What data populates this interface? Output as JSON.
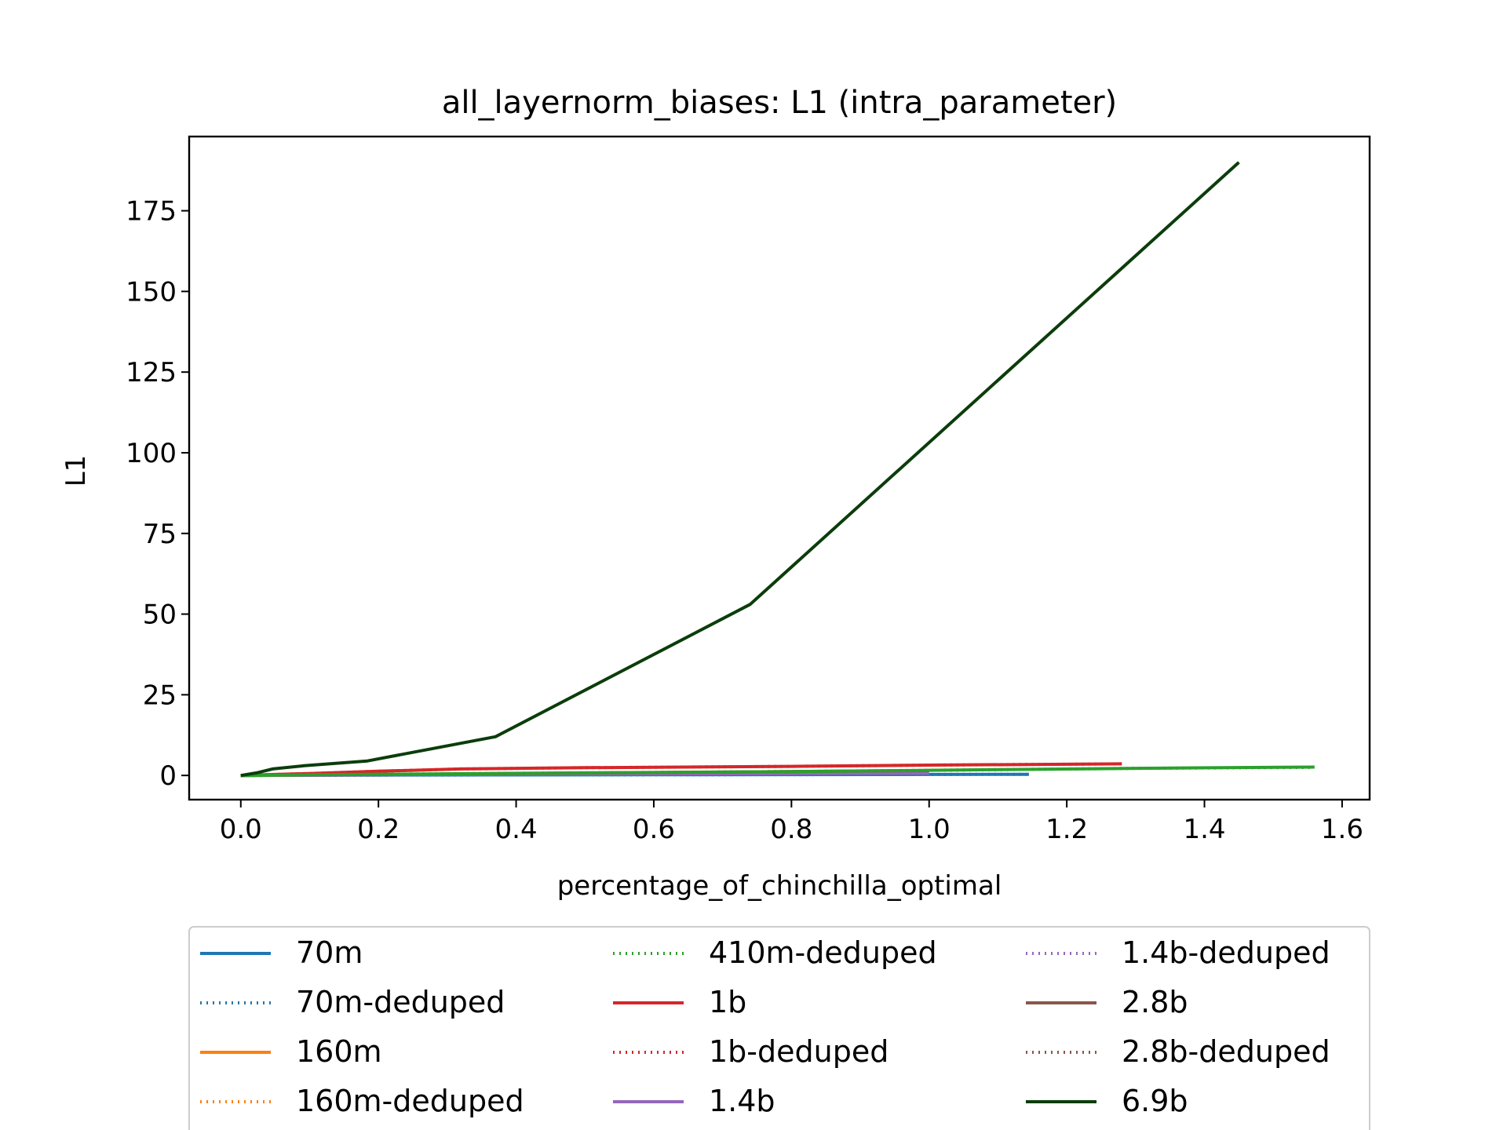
{
  "chart_data": {
    "type": "line",
    "title": "all_layernorm_biases: L1 (intra_parameter)",
    "xlabel": "percentage_of_chinchilla_optimal",
    "ylabel": "L1",
    "xlim": [
      -0.075,
      1.64
    ],
    "ylim": [
      -7.5,
      198
    ],
    "xticks": [
      0.0,
      0.2,
      0.4,
      0.6,
      0.8,
      1.0,
      1.2,
      1.4,
      1.6
    ],
    "xtick_labels": [
      "0.0",
      "0.2",
      "0.4",
      "0.6",
      "0.8",
      "1.0",
      "1.2",
      "1.4",
      "1.6"
    ],
    "yticks": [
      0,
      25,
      50,
      75,
      100,
      125,
      150,
      175
    ],
    "ytick_labels": [
      "0",
      "25",
      "50",
      "75",
      "100",
      "125",
      "150",
      "175"
    ],
    "grid": false,
    "legend_placement": "below plot, 3 columns",
    "series": [
      {
        "name": "70m",
        "color": "#1f77b4",
        "style": "solid",
        "x": [
          0.0,
          0.05,
          0.2,
          0.4,
          0.6,
          0.8,
          1.0,
          1.145
        ],
        "y": [
          0.0,
          0.05,
          0.1,
          0.15,
          0.2,
          0.25,
          0.3,
          0.35
        ]
      },
      {
        "name": "70m-deduped",
        "color": "#1f77b4",
        "style": "dotted",
        "x": [
          0.0,
          0.05,
          0.2,
          0.4,
          0.6,
          0.8,
          1.0,
          1.145
        ],
        "y": [
          0.0,
          0.05,
          0.1,
          0.15,
          0.2,
          0.25,
          0.3,
          0.35
        ]
      },
      {
        "name": "160m",
        "color": "#ff7f0e",
        "style": "solid",
        "x": [
          0.0,
          0.05,
          0.2,
          0.4,
          0.6,
          0.8,
          1.0
        ],
        "y": [
          0.0,
          0.1,
          0.3,
          0.5,
          0.8,
          1.0,
          1.3
        ]
      },
      {
        "name": "160m-deduped",
        "color": "#ff7f0e",
        "style": "dotted",
        "x": [
          0.0,
          0.05,
          0.2,
          0.4,
          0.6,
          0.8,
          1.0
        ],
        "y": [
          0.0,
          0.1,
          0.3,
          0.5,
          0.8,
          1.0,
          1.3
        ]
      },
      {
        "name": "410m-deduped",
        "color": "#2ca02c",
        "style": "dotted",
        "x": [
          0.0,
          0.1,
          0.3,
          0.5,
          0.8,
          1.1,
          1.3,
          1.56
        ],
        "y": [
          0.0,
          0.2,
          0.5,
          0.8,
          1.2,
          1.8,
          2.2,
          2.5
        ]
      },
      {
        "name": "1b",
        "color": "#d62728",
        "style": "solid",
        "x": [
          0.0,
          0.05,
          0.1,
          0.2,
          0.32,
          0.5,
          0.8,
          1.0,
          1.28
        ],
        "y": [
          0.0,
          0.3,
          0.6,
          1.3,
          2.0,
          2.4,
          2.8,
          3.2,
          3.6
        ]
      },
      {
        "name": "1b-deduped",
        "color": "#d62728",
        "style": "dotted",
        "x": [
          0.0,
          0.05,
          0.1,
          0.2,
          0.32,
          0.5,
          0.8,
          1.0,
          1.28
        ],
        "y": [
          0.0,
          0.3,
          0.6,
          1.3,
          2.0,
          2.4,
          2.8,
          3.2,
          3.6
        ]
      },
      {
        "name": "1.4b",
        "color": "#9467bd",
        "style": "solid",
        "x": [
          0.0,
          0.2,
          0.4,
          0.6,
          0.8,
          1.0
        ],
        "y": [
          0.0,
          0.2,
          0.4,
          0.5,
          0.6,
          0.7
        ]
      },
      {
        "name": "1.4b-deduped",
        "color": "#9467bd",
        "style": "dotted",
        "x": [
          0.0,
          0.2,
          0.4,
          0.6,
          0.8,
          1.0
        ],
        "y": [
          0.0,
          0.2,
          0.4,
          0.5,
          0.6,
          0.7
        ]
      },
      {
        "name": "2.8b",
        "color": "#8c564b",
        "style": "solid",
        "x": [
          0.0,
          0.2,
          0.4,
          0.6,
          0.8,
          1.0
        ],
        "y": [
          0.0,
          0.3,
          0.6,
          0.9,
          1.2,
          1.5
        ]
      },
      {
        "name": "2.8b-deduped",
        "color": "#8c564b",
        "style": "dotted",
        "x": [
          0.0,
          0.2,
          0.4,
          0.6,
          0.8,
          1.0
        ],
        "y": [
          0.0,
          0.3,
          0.6,
          0.9,
          1.2,
          1.5
        ]
      },
      {
        "name": "410m",
        "color": "#2ca02c",
        "style": "solid",
        "x": [
          0.0,
          0.1,
          0.3,
          0.5,
          0.8,
          1.1,
          1.3,
          1.56
        ],
        "y": [
          0.0,
          0.2,
          0.5,
          0.8,
          1.2,
          1.8,
          2.2,
          2.6
        ]
      },
      {
        "name": "6.9b",
        "color": "#0b3d0b",
        "style": "solid",
        "x": [
          0.0,
          0.023,
          0.046,
          0.092,
          0.184,
          0.37,
          0.74,
          1.45
        ],
        "y": [
          0.0,
          0.8,
          2.0,
          3.0,
          4.5,
          12.0,
          53.0,
          190.0
        ]
      }
    ],
    "legend_entries": [
      "70m",
      "410m-deduped",
      "1.4b-deduped",
      "70m-deduped",
      "1b",
      "2.8b",
      "160m",
      "1b-deduped",
      "2.8b-deduped",
      "160m-deduped",
      "1.4b",
      "6.9b"
    ]
  }
}
